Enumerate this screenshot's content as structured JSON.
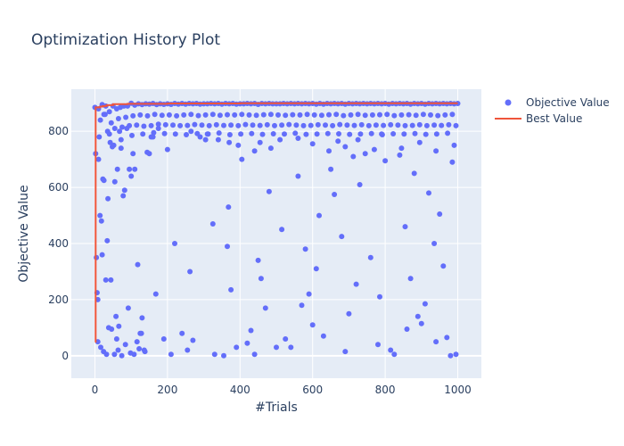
{
  "chart_data": {
    "type": "scatter",
    "title": "Optimization History Plot",
    "xlabel": "#Trials",
    "ylabel": "Objective Value",
    "xlim": [
      -65,
      1065
    ],
    "ylim": [
      -80,
      950
    ],
    "xticks": [
      0,
      200,
      400,
      600,
      800,
      1000
    ],
    "yticks": [
      0,
      200,
      400,
      600,
      800
    ],
    "grid": true,
    "legend_position": "top-right",
    "series": [
      {
        "name": "Objective Value",
        "mode": "markers",
        "color": "#636efa",
        "x": [
          0,
          2,
          4,
          6,
          8,
          10,
          14,
          18,
          20,
          22,
          25,
          28,
          30,
          34,
          36,
          40,
          44,
          48,
          52,
          55,
          58,
          62,
          64,
          68,
          72,
          78,
          82,
          88,
          95,
          100,
          105,
          110,
          118,
          125,
          130,
          138,
          150,
          160,
          168,
          175,
          190,
          200,
          210,
          220,
          240,
          255,
          262,
          270,
          290,
          310,
          325,
          330,
          340,
          355,
          365,
          368,
          375,
          390,
          405,
          420,
          430,
          440,
          450,
          458,
          470,
          480,
          500,
          515,
          525,
          540,
          560,
          570,
          580,
          590,
          600,
          610,
          618,
          630,
          650,
          660,
          680,
          690,
          700,
          712,
          720,
          730,
          745,
          760,
          780,
          785,
          800,
          815,
          825,
          840,
          855,
          860,
          870,
          880,
          890,
          900,
          910,
          920,
          935,
          940,
          950,
          960,
          970,
          980,
          985,
          995,
          10,
          30,
          50,
          70,
          90,
          110,
          130,
          150,
          170,
          190,
          210,
          230,
          250,
          270,
          290,
          310,
          330,
          350,
          370,
          390,
          410,
          430,
          450,
          470,
          490,
          510,
          530,
          550,
          570,
          590,
          610,
          630,
          650,
          670,
          690,
          710,
          730,
          750,
          770,
          790,
          810,
          830,
          850,
          870,
          890,
          910,
          930,
          950,
          970,
          990,
          20,
          40,
          60,
          80,
          100,
          120,
          140,
          160,
          180,
          200,
          220,
          240,
          260,
          280,
          300,
          320,
          340,
          360,
          380,
          400,
          420,
          440,
          460,
          480,
          500,
          520,
          540,
          560,
          580,
          600,
          620,
          640,
          660,
          680,
          700,
          720,
          740,
          760,
          780,
          800,
          820,
          840,
          860,
          880,
          900,
          920,
          940,
          960,
          980,
          1000,
          25,
          45,
          65,
          85,
          105,
          125,
          145,
          165,
          185,
          205,
          225,
          245,
          265,
          285,
          305,
          325,
          345,
          365,
          385,
          405,
          425,
          445,
          465,
          485,
          505,
          525,
          545,
          565,
          585,
          605,
          625,
          645,
          665,
          685,
          705,
          725,
          745,
          765,
          785,
          805,
          825,
          845,
          865,
          885,
          905,
          925,
          945,
          965,
          985,
          15,
          35,
          55,
          75,
          95,
          115,
          135,
          155,
          175,
          195,
          215,
          235,
          255,
          275,
          295,
          315,
          335,
          355,
          375,
          395,
          415,
          435,
          455,
          475,
          495,
          515,
          535,
          555,
          575,
          595,
          615,
          635,
          655,
          675,
          695,
          715,
          735,
          755,
          775,
          795,
          815,
          835,
          855,
          875,
          895,
          915,
          935,
          955,
          975,
          995,
          12,
          42,
          72,
          102,
          132,
          162,
          192,
          222,
          252,
          282,
          312,
          342,
          372,
          402,
          432,
          462,
          492,
          522,
          552,
          582,
          612,
          642,
          672,
          702,
          732,
          762,
          792,
          822,
          852,
          882,
          912,
          942,
          972,
          8,
          16,
          24,
          32,
          38,
          46,
          54,
          60,
          66,
          74,
          84,
          92,
          98,
          108,
          116,
          122,
          128,
          136,
          144,
          155,
          265,
          305,
          370,
          395,
          440,
          455,
          485,
          510,
          560,
          600,
          645,
          670,
          690,
          725,
          770,
          790,
          845,
          895,
          940,
          990
        ],
        "y": [
          885,
          720,
          350,
          225,
          200,
          700,
          500,
          480,
          360,
          630,
          625,
          860,
          270,
          410,
          560,
          790,
          270,
          745,
          750,
          620,
          140,
          665,
          20,
          800,
          740,
          570,
          590,
          810,
          665,
          640,
          720,
          665,
          325,
          80,
          135,
          15,
          720,
          780,
          220,
          810,
          60,
          735,
          5,
          400,
          80,
          20,
          300,
          55,
          780,
          790,
          470,
          5,
          770,
          0,
          390,
          530,
          235,
          30,
          700,
          45,
          90,
          5,
          340,
          275,
          170,
          585,
          30,
          450,
          60,
          30,
          640,
          180,
          380,
          220,
          110,
          310,
          500,
          70,
          665,
          575,
          425,
          15,
          150,
          710,
          255,
          610,
          720,
          350,
          40,
          210,
          695,
          20,
          5,
          715,
          460,
          95,
          275,
          650,
          140,
          115,
          185,
          580,
          400,
          50,
          505,
          320,
          65,
          0,
          690,
          5,
          880,
          890,
          890,
          885,
          890,
          893,
          895,
          897,
          895,
          896,
          896,
          897,
          897,
          898,
          897,
          898,
          898,
          897,
          898,
          897,
          898,
          898,
          896,
          898,
          898,
          898,
          898,
          898,
          898,
          898,
          897,
          897,
          898,
          898,
          897,
          898,
          898,
          898,
          898,
          898,
          897,
          898,
          898,
          897,
          898,
          897,
          898,
          898,
          898,
          898,
          895,
          870,
          880,
          890,
          900,
          898,
          898,
          899,
          898,
          898,
          899,
          899,
          899,
          899,
          898,
          899,
          899,
          899,
          899,
          898,
          899,
          899,
          899,
          899,
          898,
          899,
          899,
          899,
          899,
          899,
          899,
          899,
          899,
          899,
          899,
          899,
          899,
          899,
          899,
          899,
          899,
          899,
          899,
          899,
          899,
          899,
          899,
          899,
          899,
          899,
          860,
          830,
          845,
          850,
          855,
          858,
          855,
          860,
          857,
          858,
          855,
          858,
          860,
          856,
          858,
          860,
          857,
          859,
          858,
          860,
          858,
          857,
          859,
          860,
          858,
          857,
          859,
          858,
          860,
          858,
          857,
          859,
          860,
          856,
          858,
          860,
          857,
          858,
          859,
          860,
          856,
          858,
          859,
          857,
          860,
          858,
          856,
          858,
          860,
          840,
          800,
          810,
          815,
          820,
          822,
          818,
          820,
          825,
          823,
          822,
          820,
          821,
          824,
          822,
          820,
          823,
          821,
          822,
          820,
          824,
          822,
          821,
          823,
          820,
          822,
          824,
          822,
          820,
          821,
          823,
          822,
          820,
          824,
          822,
          821,
          823,
          820,
          822,
          821,
          823,
          822,
          820,
          821,
          823,
          820,
          822,
          821,
          823,
          820,
          780,
          760,
          770,
          785,
          790,
          795,
          792,
          790,
          788,
          792,
          790,
          794,
          788,
          790,
          792,
          789,
          791,
          790,
          793,
          789,
          790,
          792,
          791,
          789,
          790,
          792,
          788,
          791,
          790,
          792,
          789,
          790,
          793,
          50,
          30,
          15,
          5,
          100,
          95,
          5,
          60,
          105,
          0,
          40,
          170,
          10,
          5,
          50,
          25,
          80,
          20,
          725,
          780,
          800,
          770,
          760,
          750,
          730,
          760,
          740,
          770,
          775,
          755,
          730,
          765,
          745,
          770,
          735,
          790,
          740,
          760,
          730,
          750
        ],
        "size": 6
      },
      {
        "name": "Best Value",
        "mode": "line",
        "color": "#ef553b",
        "x": [
          0,
          2,
          2,
          14,
          14,
          22,
          22,
          32,
          32,
          50,
          50,
          90,
          90,
          200,
          200,
          400,
          400,
          1000
        ],
        "y": [
          50,
          50,
          885,
          885,
          888,
          888,
          890,
          890,
          893,
          893,
          897,
          897,
          898,
          898,
          899,
          899,
          900,
          900
        ]
      }
    ]
  },
  "colors": {
    "plot_bg": "#e5ecf6",
    "grid": "#ffffff",
    "text": "#2a3f5f"
  }
}
